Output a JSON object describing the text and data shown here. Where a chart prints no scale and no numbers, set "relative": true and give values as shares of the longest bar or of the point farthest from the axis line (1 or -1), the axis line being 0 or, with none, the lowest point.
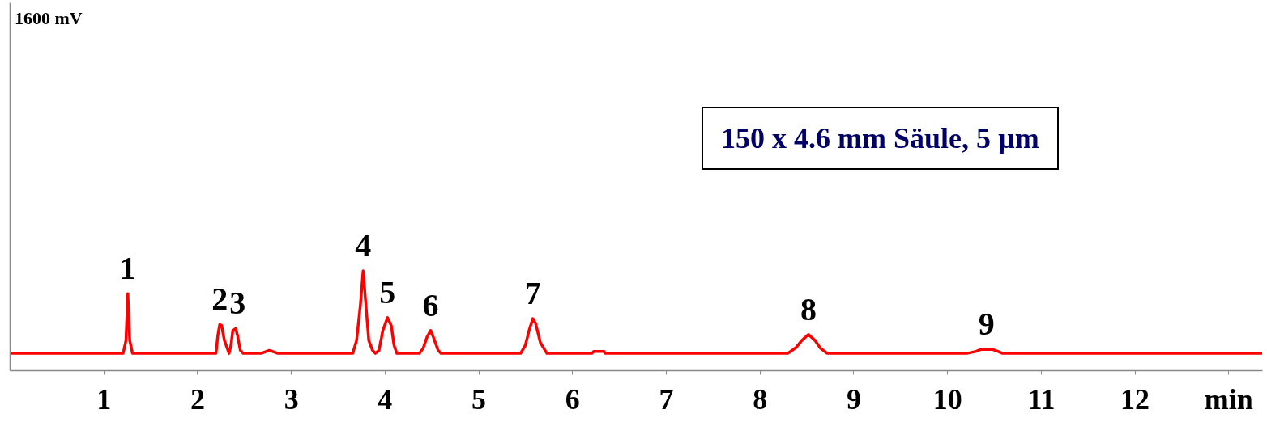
{
  "chart_data": {
    "type": "line",
    "relative": true,
    "xlim": [
      0,
      13.36
    ],
    "xticks": [
      1,
      2,
      3,
      4,
      5,
      6,
      7,
      8,
      9,
      10,
      11,
      12,
      {
        "value": 13,
        "label": "min"
      }
    ],
    "grid": false,
    "marker": "none",
    "line_style": "solid",
    "series": [
      {
        "color": "#ff0000",
        "x": [
          0.01,
          1.21,
          1.24,
          1.26,
          1.28,
          1.31,
          2.2,
          2.22,
          2.24,
          2.26,
          2.29,
          2.34,
          2.36,
          2.38,
          2.41,
          2.43,
          2.46,
          2.49,
          2.68,
          2.77,
          2.86,
          3.66,
          3.7,
          3.74,
          3.77,
          3.8,
          3.83,
          3.87,
          3.9,
          3.94,
          3.98,
          4.03,
          4.07,
          4.1,
          4.13,
          4.37,
          4.41,
          4.45,
          4.49,
          4.52,
          4.57,
          4.6,
          5.45,
          5.5,
          5.54,
          5.58,
          5.61,
          5.66,
          5.73,
          6.21,
          6.23,
          6.34,
          6.35,
          8.3,
          8.39,
          8.45,
          8.52,
          8.59,
          8.65,
          8.72,
          10.21,
          10.31,
          10.36,
          10.48,
          10.54,
          10.59,
          13.36
        ],
        "values": [
          0.17,
          0.17,
          0.3,
          0.77,
          0.3,
          0.17,
          0.17,
          0.35,
          0.46,
          0.45,
          0.3,
          0.17,
          0.25,
          0.4,
          0.42,
          0.35,
          0.2,
          0.17,
          0.17,
          0.2,
          0.17,
          0.17,
          0.3,
          0.65,
          1,
          0.65,
          0.3,
          0.2,
          0.17,
          0.2,
          0.4,
          0.53,
          0.45,
          0.25,
          0.17,
          0.17,
          0.22,
          0.33,
          0.4,
          0.33,
          0.2,
          0.17,
          0.17,
          0.25,
          0.4,
          0.52,
          0.47,
          0.28,
          0.17,
          0.17,
          0.19,
          0.19,
          0.17,
          0.17,
          0.23,
          0.3,
          0.36,
          0.3,
          0.22,
          0.17,
          0.17,
          0.19,
          0.21,
          0.21,
          0.19,
          0.17,
          0.17
        ]
      }
    ],
    "annotations": [
      {
        "text": "1",
        "x": 1.26,
        "y": 0.77
      },
      {
        "text": "2",
        "x": 2.24,
        "y": 0.46
      },
      {
        "text": "3",
        "x": 2.43,
        "y": 0.42
      },
      {
        "text": "4",
        "x": 3.77,
        "y": 1
      },
      {
        "text": "5",
        "x": 4.03,
        "y": 0.53
      },
      {
        "text": "6",
        "x": 4.49,
        "y": 0.4
      },
      {
        "text": "7",
        "x": 5.58,
        "y": 0.52
      },
      {
        "text": "8",
        "x": 8.52,
        "y": 0.36
      },
      {
        "text": "9",
        "x": 10.42,
        "y": 0.21
      },
      "1600 mV",
      "150 x 4.6 mm Säule, 5 µm"
    ]
  }
}
